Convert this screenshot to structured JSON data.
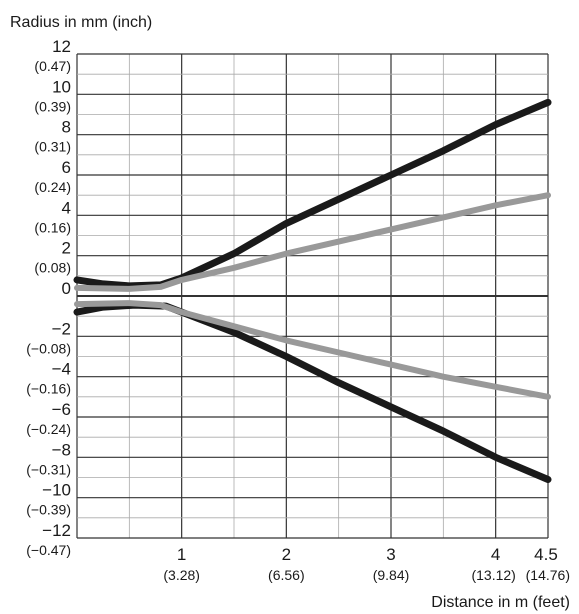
{
  "chart_data": {
    "type": "line",
    "ylabel": "Radius in mm (inch)",
    "xlabel": "Distance in m (feet)",
    "xlim": [
      0,
      4.5
    ],
    "ylim": [
      -12,
      12
    ],
    "grid": true,
    "x_ticks": [
      {
        "value": 1,
        "label": "1",
        "sublabel": "(3.28)"
      },
      {
        "value": 2,
        "label": "2",
        "sublabel": "(6.56)"
      },
      {
        "value": 3,
        "label": "3",
        "sublabel": "(9.84)"
      },
      {
        "value": 4,
        "label": "4",
        "sublabel": "(13.12)"
      },
      {
        "value": 4.5,
        "label": "4.5",
        "sublabel": "(14.76)"
      }
    ],
    "y_ticks": [
      {
        "value": 12,
        "label": "12",
        "sublabel": "(0.47)"
      },
      {
        "value": 10,
        "label": "10",
        "sublabel": "(0.39)"
      },
      {
        "value": 8,
        "label": "8",
        "sublabel": "(0.31)"
      },
      {
        "value": 6,
        "label": "6",
        "sublabel": "(0.24)"
      },
      {
        "value": 4,
        "label": "4",
        "sublabel": "(0.16)"
      },
      {
        "value": 2,
        "label": "2",
        "sublabel": "(0.08)"
      },
      {
        "value": 0,
        "label": "0",
        "sublabel": ""
      },
      {
        "value": -2,
        "label": "−2",
        "sublabel": "(−0.08)"
      },
      {
        "value": -4,
        "label": "−4",
        "sublabel": "(−0.16)"
      },
      {
        "value": -6,
        "label": "−6",
        "sublabel": "(−0.24)"
      },
      {
        "value": -8,
        "label": "−8",
        "sublabel": "(−0.31)"
      },
      {
        "value": -10,
        "label": "−10",
        "sublabel": "(−0.39)"
      },
      {
        "value": -12,
        "label": "−12",
        "sublabel": "(−0.47)"
      }
    ],
    "series": [
      {
        "color": "#1a1a1a",
        "points": [
          [
            0,
            0.8
          ],
          [
            0.25,
            0.6
          ],
          [
            0.5,
            0.5
          ],
          [
            0.8,
            0.55
          ],
          [
            1.0,
            0.9
          ],
          [
            1.5,
            2.1
          ],
          [
            2.0,
            3.6
          ],
          [
            2.5,
            4.8
          ],
          [
            3.0,
            6.0
          ],
          [
            3.5,
            7.2
          ],
          [
            4.0,
            8.5
          ],
          [
            4.5,
            9.6
          ]
        ]
      },
      {
        "color": "#1a1a1a",
        "points": [
          [
            0,
            -0.8
          ],
          [
            0.25,
            -0.55
          ],
          [
            0.55,
            -0.45
          ],
          [
            0.85,
            -0.5
          ],
          [
            1.0,
            -0.8
          ],
          [
            1.5,
            -1.8
          ],
          [
            2.0,
            -3.0
          ],
          [
            2.5,
            -4.3
          ],
          [
            3.0,
            -5.5
          ],
          [
            3.5,
            -6.7
          ],
          [
            4.0,
            -8.0
          ],
          [
            4.5,
            -9.1
          ]
        ]
      },
      {
        "color": "#999999",
        "points": [
          [
            0,
            0.4
          ],
          [
            0.5,
            0.35
          ],
          [
            0.8,
            0.45
          ],
          [
            1.0,
            0.8
          ],
          [
            1.5,
            1.4
          ],
          [
            2.0,
            2.1
          ],
          [
            2.5,
            2.7
          ],
          [
            3.0,
            3.3
          ],
          [
            3.5,
            3.9
          ],
          [
            4.0,
            4.5
          ],
          [
            4.5,
            5.0
          ]
        ]
      },
      {
        "color": "#999999",
        "points": [
          [
            0,
            -0.4
          ],
          [
            0.5,
            -0.35
          ],
          [
            0.8,
            -0.45
          ],
          [
            1.0,
            -0.8
          ],
          [
            1.5,
            -1.5
          ],
          [
            2.0,
            -2.2
          ],
          [
            2.5,
            -2.8
          ],
          [
            3.0,
            -3.4
          ],
          [
            3.5,
            -4.0
          ],
          [
            4.0,
            -4.5
          ],
          [
            4.5,
            -5.0
          ]
        ]
      }
    ]
  }
}
